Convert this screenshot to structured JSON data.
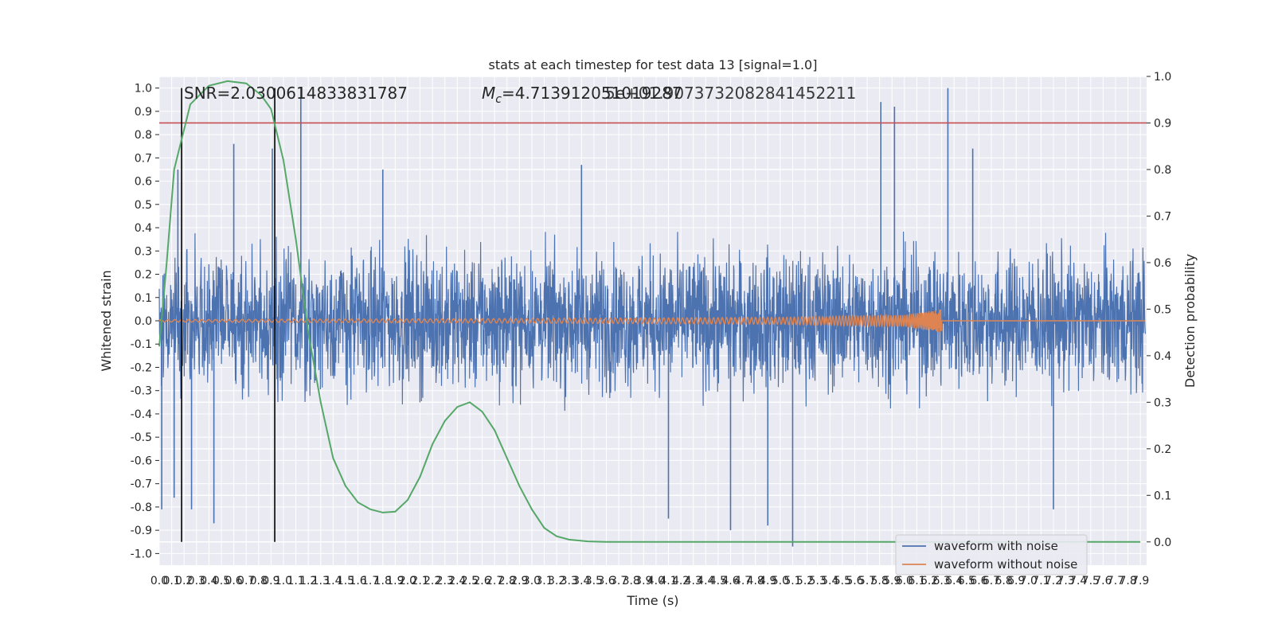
{
  "chart_data": {
    "type": "line",
    "title": "stats at each timestep for test data 13 [signal=1.0]",
    "xlabel": "Time (s)",
    "ylabel_left": "Whitened strain",
    "ylabel_right": "Detection probability",
    "xlim": [
      0.0,
      7.95
    ],
    "ylim_left": [
      -1.05,
      1.05
    ],
    "ylim_right": [
      -0.05,
      1.0
    ],
    "x_ticks": [
      "0.0",
      "0.1",
      "0.2",
      "0.3",
      "0.4",
      "0.5",
      "0.6",
      "0.7",
      "0.8",
      "0.9",
      "1.0",
      "1.1",
      "1.2",
      "1.3",
      "1.4",
      "1.5",
      "1.6",
      "1.7",
      "1.8",
      "1.9",
      "2.0",
      "2.1",
      "2.2",
      "2.3",
      "2.4",
      "2.5",
      "2.6",
      "2.7",
      "2.8",
      "2.9",
      "3.0",
      "3.1",
      "3.2",
      "3.3",
      "3.4",
      "3.5",
      "3.6",
      "3.7",
      "3.8",
      "3.9",
      "4.0",
      "4.1",
      "4.2",
      "4.3",
      "4.4",
      "4.5",
      "4.6",
      "4.7",
      "4.8",
      "4.9",
      "5.0",
      "5.1",
      "5.2",
      "5.3",
      "5.4",
      "5.5",
      "5.6",
      "5.7",
      "5.8",
      "5.9",
      "6.0",
      "6.1",
      "6.2",
      "6.3",
      "6.4",
      "6.5",
      "6.6",
      "6.7",
      "6.8",
      "6.9",
      "7.0",
      "7.1",
      "7.2",
      "7.3",
      "7.4",
      "7.5",
      "7.6",
      "7.7",
      "7.8",
      "7.9"
    ],
    "y_ticks_left": [
      "1.0",
      "0.9",
      "0.8",
      "0.7",
      "0.6",
      "0.5",
      "0.4",
      "0.3",
      "0.2",
      "0.1",
      "0.0",
      "-0.1",
      "-0.2",
      "-0.3",
      "-0.4",
      "-0.5",
      "-0.6",
      "-0.7",
      "-0.8",
      "-0.9",
      "-1.0"
    ],
    "y_ticks_right": [
      "1.0",
      "0.9",
      "0.8",
      "0.7",
      "0.6",
      "0.5",
      "0.4",
      "0.3",
      "0.2",
      "0.1",
      "0.0"
    ],
    "annotations": {
      "snr": "SNR=2.0300614833831787",
      "mc_symbol": "M",
      "mc_sub": "c",
      "mc_value": "=4.713912051019287",
      "overlap_value": "5e+01.9073732082841452211"
    },
    "threshold_line": {
      "y_right": 0.9,
      "color": "#c44e52"
    },
    "vertical_lines_x": [
      0.18,
      0.93
    ],
    "grid": true,
    "legend_position": "lower-right",
    "series": [
      {
        "name": "waveform with noise",
        "axis": "left",
        "color": "#4c72b0",
        "kind": "dense-noise",
        "typical_amplitude": 0.4,
        "spike_peaks": [
          {
            "x": 0.02,
            "y": -0.81
          },
          {
            "x": 0.12,
            "y": -0.76
          },
          {
            "x": 0.15,
            "y": 0.65
          },
          {
            "x": 0.26,
            "y": -0.81
          },
          {
            "x": 0.44,
            "y": -0.87
          },
          {
            "x": 0.6,
            "y": 0.76
          },
          {
            "x": 0.91,
            "y": 0.74
          },
          {
            "x": 1.14,
            "y": 1.0
          },
          {
            "x": 1.8,
            "y": 0.65
          },
          {
            "x": 3.4,
            "y": 0.67
          },
          {
            "x": 4.1,
            "y": -0.85
          },
          {
            "x": 4.6,
            "y": -0.9
          },
          {
            "x": 4.9,
            "y": -0.88
          },
          {
            "x": 5.1,
            "y": -0.97
          },
          {
            "x": 5.81,
            "y": 0.94
          },
          {
            "x": 5.92,
            "y": 0.92
          },
          {
            "x": 6.35,
            "y": 1.0
          },
          {
            "x": 6.55,
            "y": 0.74
          },
          {
            "x": 7.2,
            "y": -0.81
          }
        ]
      },
      {
        "name": "waveform without noise",
        "axis": "left",
        "color": "#dd8452",
        "kind": "chirp",
        "x_end": 6.3,
        "envelope": [
          {
            "x": 0.0,
            "y": 0.005
          },
          {
            "x": 3.0,
            "y": 0.01
          },
          {
            "x": 5.0,
            "y": 0.015
          },
          {
            "x": 6.0,
            "y": 0.025
          },
          {
            "x": 6.3,
            "y": 0.05
          }
        ]
      },
      {
        "name": "Detection probability",
        "axis": "right",
        "color": "#55a868",
        "points": [
          {
            "x": 0.0,
            "y": 0.42
          },
          {
            "x": 0.06,
            "y": 0.6
          },
          {
            "x": 0.12,
            "y": 0.8
          },
          {
            "x": 0.25,
            "y": 0.94
          },
          {
            "x": 0.4,
            "y": 0.98
          },
          {
            "x": 0.55,
            "y": 0.99
          },
          {
            "x": 0.7,
            "y": 0.985
          },
          {
            "x": 0.82,
            "y": 0.96
          },
          {
            "x": 0.9,
            "y": 0.93
          },
          {
            "x": 1.0,
            "y": 0.82
          },
          {
            "x": 1.1,
            "y": 0.65
          },
          {
            "x": 1.2,
            "y": 0.45
          },
          {
            "x": 1.3,
            "y": 0.3
          },
          {
            "x": 1.4,
            "y": 0.18
          },
          {
            "x": 1.5,
            "y": 0.12
          },
          {
            "x": 1.6,
            "y": 0.085
          },
          {
            "x": 1.7,
            "y": 0.07
          },
          {
            "x": 1.8,
            "y": 0.063
          },
          {
            "x": 1.9,
            "y": 0.065
          },
          {
            "x": 2.0,
            "y": 0.09
          },
          {
            "x": 2.1,
            "y": 0.14
          },
          {
            "x": 2.2,
            "y": 0.21
          },
          {
            "x": 2.3,
            "y": 0.26
          },
          {
            "x": 2.4,
            "y": 0.29
          },
          {
            "x": 2.5,
            "y": 0.3
          },
          {
            "x": 2.6,
            "y": 0.28
          },
          {
            "x": 2.7,
            "y": 0.24
          },
          {
            "x": 2.8,
            "y": 0.18
          },
          {
            "x": 2.9,
            "y": 0.12
          },
          {
            "x": 3.0,
            "y": 0.07
          },
          {
            "x": 3.1,
            "y": 0.03
          },
          {
            "x": 3.2,
            "y": 0.012
          },
          {
            "x": 3.3,
            "y": 0.005
          },
          {
            "x": 3.45,
            "y": 0.001
          },
          {
            "x": 3.6,
            "y": 0.0
          },
          {
            "x": 5.0,
            "y": 0.0
          },
          {
            "x": 7.9,
            "y": 0.0
          }
        ]
      }
    ]
  }
}
